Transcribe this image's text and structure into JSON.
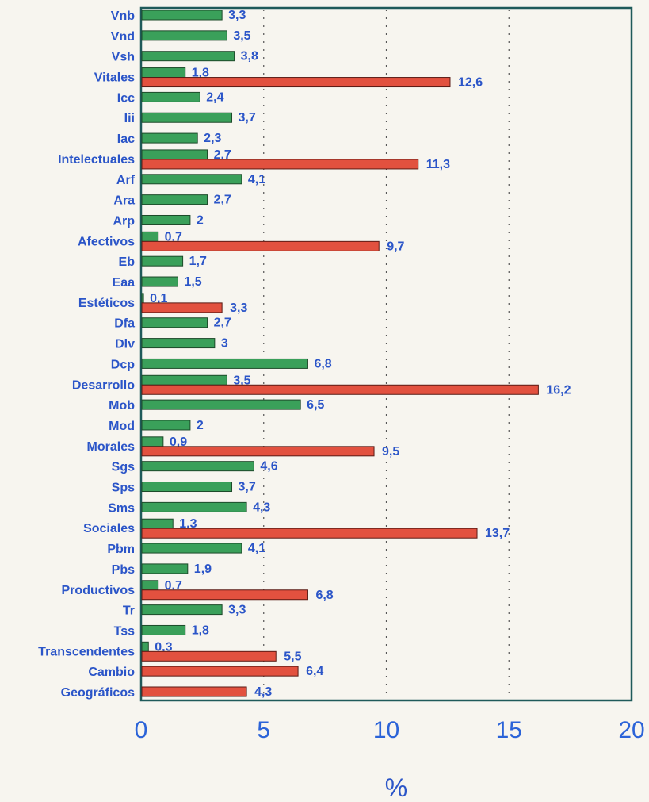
{
  "colors": {
    "detail": "#3aa05a",
    "category": "#e2513f",
    "label": "#2b55c8",
    "frame": "#1f5a5a",
    "grid": "#555555"
  },
  "chart_data": {
    "type": "bar",
    "orientation": "horizontal",
    "xlabel": "%",
    "xlim": [
      0,
      20
    ],
    "xticks": [
      0,
      5,
      10,
      15,
      20
    ],
    "grid": "dotted vertical at 5, 10, 15",
    "legend": "none",
    "categories": [
      "Vnb",
      "Vnd",
      "Vsh",
      "Vitales",
      "Icc",
      "Iii",
      "Iac",
      "Intelectuales",
      "Arf",
      "Ara",
      "Arp",
      "Afectivos",
      "Eb",
      "Eaa",
      "Estéticos",
      "Dfa",
      "Dlv",
      "Dcp",
      "Desarrollo",
      "Mob",
      "Mod",
      "Morales",
      "Sgs",
      "Sps",
      "Sms",
      "Sociales",
      "Pbm",
      "Pbs",
      "Productivos",
      "Tr",
      "Tss",
      "Transcendentes",
      "Cambio",
      "Geográficos"
    ],
    "series": [
      {
        "color": "#3aa05a",
        "values": [
          3.3,
          3.5,
          3.8,
          1.8,
          2.4,
          3.7,
          2.3,
          2.7,
          4.1,
          2.7,
          2,
          0.7,
          1.7,
          1.5,
          0.1,
          2.7,
          3,
          6.8,
          3.5,
          6.5,
          2,
          0.9,
          4.6,
          3.7,
          4.3,
          1.3,
          4.1,
          1.9,
          0.7,
          3.3,
          1.8,
          0.3,
          null,
          null
        ],
        "labels": [
          "3,3",
          "3,5",
          "3,8",
          "1,8",
          "2,4",
          "3,7",
          "2,3",
          "2,7",
          "4,1",
          "2,7",
          "2",
          "0,7",
          "1,7",
          "1,5",
          "0,1",
          "2,7",
          "3",
          "6,8",
          "3,5",
          "6,5",
          "2",
          "0,9",
          "4,6",
          "3,7",
          "4,3",
          "1,3",
          "4,1",
          "1,9",
          "0,7",
          "3,3",
          "1,8",
          "0,3",
          "",
          ""
        ]
      },
      {
        "color": "#e2513f",
        "values": [
          null,
          null,
          null,
          12.6,
          null,
          null,
          null,
          11.3,
          null,
          null,
          null,
          9.7,
          null,
          null,
          3.3,
          null,
          null,
          null,
          16.2,
          null,
          null,
          9.5,
          null,
          null,
          null,
          13.7,
          null,
          null,
          6.8,
          null,
          null,
          5.5,
          6.4,
          4.3
        ],
        "labels": [
          "",
          "",
          "",
          "12,6",
          "",
          "",
          "",
          "11,3",
          "",
          "",
          "",
          "9,7",
          "",
          "",
          "3,3",
          "",
          "",
          "",
          "16,2",
          "",
          "",
          "9,5",
          "",
          "",
          "",
          "13,7",
          "",
          "",
          "6,8",
          "",
          "",
          "5,5",
          "6,4",
          "4,3"
        ]
      }
    ]
  }
}
